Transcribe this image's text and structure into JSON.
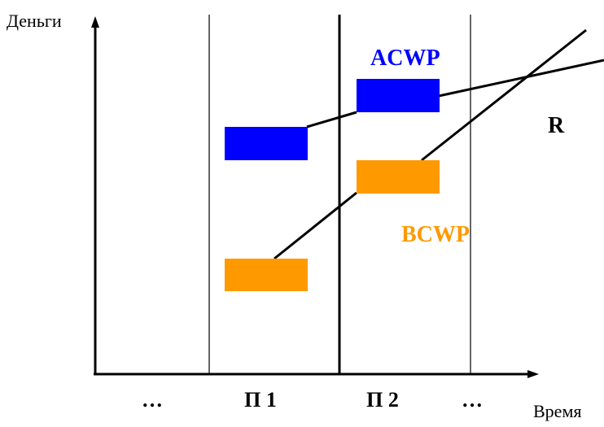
{
  "axes": {
    "y_label": "Деньги",
    "x_label": "Время"
  },
  "periods": [
    "…",
    "П 1",
    "П 2",
    "…"
  ],
  "series": [
    {
      "label": "ACWP",
      "color": "#0000ff"
    },
    {
      "label": "BCWP",
      "color": "#ff9900"
    }
  ],
  "curve_label": "R",
  "colors": {
    "line": "#000000",
    "acwp": "#0000ff",
    "bcwp": "#ff9900",
    "bcwp_label": "#ff9900",
    "acwp_label": "#0000ff"
  }
}
